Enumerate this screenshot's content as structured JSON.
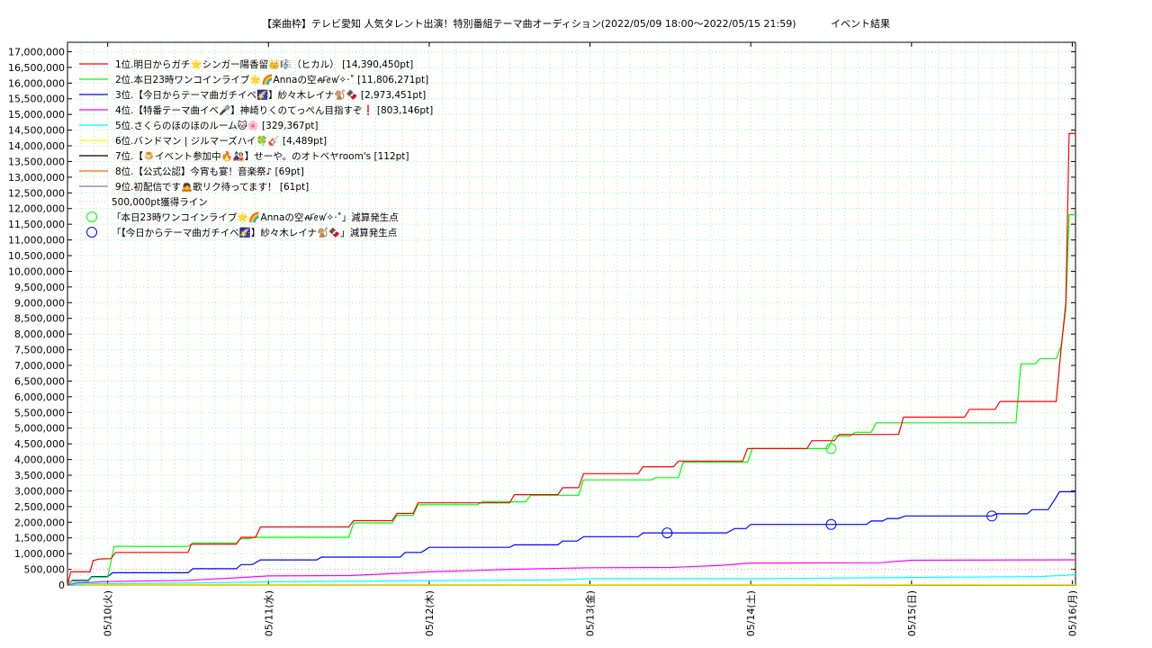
{
  "title": "【楽曲枠】テレビ愛知 人気タレント出演！特別番組テーマ曲オーディション(2022/05/09 18:00〜2022/05/15 21:59)           イベント結果",
  "chart_data": {
    "type": "line",
    "x_tick_labels": [
      "05/10(火)",
      "05/11(水)",
      "05/12(木)",
      "05/13(金)",
      "05/14(土)",
      "05/15(日)",
      "05/16(月)"
    ],
    "x_tick_positions_days": [
      1,
      2,
      3,
      4,
      5,
      6,
      7
    ],
    "xlim_days": [
      0.75,
      7.02
    ],
    "ylim": [
      0,
      17300000
    ],
    "y_ticks": [
      0,
      500000,
      1000000,
      1500000,
      2000000,
      2500000,
      3000000,
      3500000,
      4000000,
      4500000,
      5000000,
      5500000,
      6000000,
      6500000,
      7000000,
      7500000,
      8000000,
      8500000,
      9000000,
      9500000,
      10000000,
      10500000,
      11000000,
      11500000,
      12000000,
      12500000,
      13000000,
      13500000,
      14000000,
      14500000,
      15000000,
      15500000,
      16000000,
      16500000,
      17000000
    ],
    "y_tick_labels": [
      "0",
      "500,000",
      "1,000,000",
      "1,500,000",
      "2,000,000",
      "2,500,000",
      "3,000,000",
      "3,500,000",
      "4,000,000",
      "4,500,000",
      "5,000,000",
      "5,500,000",
      "6,000,000",
      "6,500,000",
      "7,000,000",
      "7,500,000",
      "8,000,000",
      "8,500,000",
      "9,000,000",
      "9,500,000",
      "10,000,000",
      "10,500,000",
      "11,000,000",
      "11,500,000",
      "12,000,000",
      "12,500,000",
      "13,000,000",
      "13,500,000",
      "14,000,000",
      "14,500,000",
      "15,000,000",
      "15,500,000",
      "16,000,000",
      "16,500,000",
      "17,000,000"
    ],
    "grid": true,
    "legend_position": "top-left",
    "series": [
      {
        "name": "1位.明日からガチ🌟シンガー陽香留👑🎼（ヒカル） [14,390,450pt]",
        "color": "#ff0000",
        "points": [
          [
            0.75,
            0
          ],
          [
            0.77,
            420000
          ],
          [
            0.89,
            420000
          ],
          [
            0.91,
            780000
          ],
          [
            0.95,
            830000
          ],
          [
            1.02,
            840000
          ],
          [
            1.05,
            1040000
          ],
          [
            1.5,
            1040000
          ],
          [
            1.52,
            1300000
          ],
          [
            1.8,
            1300000
          ],
          [
            1.83,
            1520000
          ],
          [
            1.92,
            1520000
          ],
          [
            1.95,
            1850000
          ],
          [
            2.5,
            1850000
          ],
          [
            2.53,
            2050000
          ],
          [
            2.77,
            2050000
          ],
          [
            2.8,
            2280000
          ],
          [
            2.9,
            2280000
          ],
          [
            2.93,
            2620000
          ],
          [
            3.5,
            2620000
          ],
          [
            3.53,
            2880000
          ],
          [
            3.8,
            2880000
          ],
          [
            3.83,
            3100000
          ],
          [
            3.93,
            3100000
          ],
          [
            3.96,
            3550000
          ],
          [
            4.3,
            3550000
          ],
          [
            4.33,
            3770000
          ],
          [
            4.52,
            3770000
          ],
          [
            4.55,
            3950000
          ],
          [
            4.95,
            3950000
          ],
          [
            4.98,
            4350000
          ],
          [
            5.35,
            4350000
          ],
          [
            5.38,
            4600000
          ],
          [
            5.52,
            4600000
          ],
          [
            5.55,
            4800000
          ],
          [
            5.92,
            4800000
          ],
          [
            5.95,
            5350000
          ],
          [
            6.33,
            5350000
          ],
          [
            6.36,
            5600000
          ],
          [
            6.52,
            5600000
          ],
          [
            6.55,
            5850000
          ],
          [
            6.9,
            5850000
          ],
          [
            6.93,
            7500000
          ],
          [
            6.96,
            9000000
          ],
          [
            6.98,
            14390450
          ],
          [
            7.02,
            14390450
          ]
        ]
      },
      {
        "name": "2位.本日23時ワンコインライブ🌟🌈Annaの空ꫛꫀꪝ✧‧˚ [11,806,271pt]",
        "color": "#00ff00",
        "points": [
          [
            0.75,
            0
          ],
          [
            0.77,
            120000
          ],
          [
            0.88,
            120000
          ],
          [
            0.9,
            250000
          ],
          [
            1.0,
            250000
          ],
          [
            1.04,
            1230000
          ],
          [
            1.5,
            1230000
          ],
          [
            1.53,
            1340000
          ],
          [
            1.8,
            1340000
          ],
          [
            1.83,
            1480000
          ],
          [
            1.88,
            1480000
          ],
          [
            1.92,
            1520000
          ],
          [
            2.5,
            1520000
          ],
          [
            2.53,
            1980000
          ],
          [
            2.77,
            1980000
          ],
          [
            2.8,
            2220000
          ],
          [
            2.9,
            2220000
          ],
          [
            2.93,
            2560000
          ],
          [
            3.3,
            2560000
          ],
          [
            3.33,
            2650000
          ],
          [
            3.6,
            2650000
          ],
          [
            3.63,
            2860000
          ],
          [
            3.93,
            2860000
          ],
          [
            3.96,
            3350000
          ],
          [
            4.38,
            3350000
          ],
          [
            4.41,
            3420000
          ],
          [
            4.55,
            3420000
          ],
          [
            4.58,
            3920000
          ],
          [
            4.98,
            3920000
          ],
          [
            5.01,
            4350000
          ],
          [
            5.48,
            4350000
          ],
          [
            5.52,
            4750000
          ],
          [
            5.62,
            4750000
          ],
          [
            5.65,
            4870000
          ],
          [
            5.75,
            4870000
          ],
          [
            5.78,
            5170000
          ],
          [
            6.65,
            5170000
          ],
          [
            6.68,
            7050000
          ],
          [
            6.77,
            7050000
          ],
          [
            6.8,
            7220000
          ],
          [
            6.9,
            7220000
          ],
          [
            6.93,
            7600000
          ],
          [
            6.96,
            8800000
          ],
          [
            6.98,
            11806271
          ],
          [
            7.02,
            11806271
          ]
        ]
      },
      {
        "name": "3位.【今日からテーマ曲ガチイベ🌠】紗々木レイナ🐒🍫 [2,973,451pt]",
        "color": "#0000ff",
        "points": [
          [
            0.75,
            0
          ],
          [
            0.78,
            150000
          ],
          [
            0.88,
            150000
          ],
          [
            0.9,
            270000
          ],
          [
            1.0,
            270000
          ],
          [
            1.03,
            390000
          ],
          [
            1.5,
            390000
          ],
          [
            1.53,
            520000
          ],
          [
            1.8,
            520000
          ],
          [
            1.83,
            650000
          ],
          [
            1.9,
            650000
          ],
          [
            1.95,
            800000
          ],
          [
            2.3,
            800000
          ],
          [
            2.33,
            890000
          ],
          [
            2.82,
            890000
          ],
          [
            2.85,
            1040000
          ],
          [
            2.95,
            1040000
          ],
          [
            3.0,
            1200000
          ],
          [
            3.5,
            1200000
          ],
          [
            3.53,
            1280000
          ],
          [
            3.8,
            1280000
          ],
          [
            3.83,
            1400000
          ],
          [
            3.92,
            1400000
          ],
          [
            3.96,
            1540000
          ],
          [
            4.3,
            1540000
          ],
          [
            4.33,
            1660000
          ],
          [
            4.85,
            1660000
          ],
          [
            4.9,
            1800000
          ],
          [
            4.97,
            1800000
          ],
          [
            5.0,
            1930000
          ],
          [
            5.72,
            1930000
          ],
          [
            5.75,
            2040000
          ],
          [
            5.82,
            2040000
          ],
          [
            5.85,
            2120000
          ],
          [
            5.92,
            2120000
          ],
          [
            5.96,
            2200000
          ],
          [
            6.5,
            2200000
          ],
          [
            6.53,
            2270000
          ],
          [
            6.72,
            2270000
          ],
          [
            6.75,
            2400000
          ],
          [
            6.85,
            2400000
          ],
          [
            6.9,
            2800000
          ],
          [
            6.92,
            2973451
          ],
          [
            7.02,
            2973451
          ]
        ]
      },
      {
        "name": "4位.【特番テーマ曲イベ🎤】神崎りくのてっぺん目指すぞ❗ [803,146pt]",
        "color": "#ff00ff",
        "points": [
          [
            0.75,
            0
          ],
          [
            0.8,
            60000
          ],
          [
            1.0,
            110000
          ],
          [
            1.5,
            150000
          ],
          [
            1.8,
            230000
          ],
          [
            2.0,
            290000
          ],
          [
            2.5,
            300000
          ],
          [
            2.8,
            370000
          ],
          [
            3.0,
            420000
          ],
          [
            3.5,
            500000
          ],
          [
            4.0,
            550000
          ],
          [
            4.5,
            560000
          ],
          [
            4.8,
            620000
          ],
          [
            5.0,
            700000
          ],
          [
            5.8,
            710000
          ],
          [
            6.0,
            790000
          ],
          [
            6.8,
            800000
          ],
          [
            7.02,
            803146
          ]
        ]
      },
      {
        "name": "5位.さくらのほのほのルーム🐱🌸 [329,367pt]",
        "color": "#00ffff",
        "points": [
          [
            0.75,
            0
          ],
          [
            0.9,
            40000
          ],
          [
            1.5,
            60000
          ],
          [
            2.0,
            100000
          ],
          [
            3.0,
            140000
          ],
          [
            3.8,
            160000
          ],
          [
            4.0,
            200000
          ],
          [
            5.0,
            200000
          ],
          [
            6.0,
            240000
          ],
          [
            6.8,
            270000
          ],
          [
            7.02,
            329367
          ]
        ]
      },
      {
        "name": "6位.バンドマン | ジルマーズハイ🍀🎸 [4,489pt]",
        "color": "#ffff00",
        "points": [
          [
            0.75,
            0
          ],
          [
            7.02,
            4489
          ]
        ]
      },
      {
        "name": "7位.【🍮イベント参加中🔥🎎】せーや。のオトベヤroom's [112pt]",
        "color": "#000000",
        "points": [
          [
            0.75,
            0
          ],
          [
            7.02,
            112
          ]
        ]
      },
      {
        "name": "8位.【公式公認】今宵も宴！音楽祭♪ [69pt]",
        "color": "#ff6600",
        "points": [
          [
            0.75,
            0
          ],
          [
            7.02,
            69
          ]
        ]
      },
      {
        "name": "9位.初配信です🙇歌リク待ってます！ [61pt]",
        "color": "#808080",
        "points": [
          [
            0.75,
            0
          ],
          [
            7.02,
            61
          ]
        ]
      }
    ],
    "reference_line": {
      "name": "500,000pt獲得ライン",
      "value": 500000,
      "color": "#ff99cc"
    },
    "markers": [
      {
        "name": "「本日23時ワンコインライブ🌟🌈Annaの空ꫛꫀꪝ✧‧˚」減算発生点",
        "color": "#00ff00",
        "points": [
          [
            5.5,
            4350000
          ]
        ]
      },
      {
        "name": "「【今日からテーマ曲ガチイベ🌠】紗々木レイナ🐒🍫」減算発生点",
        "color": "#0000ff",
        "points": [
          [
            4.48,
            1660000
          ],
          [
            5.5,
            1930000
          ],
          [
            6.5,
            2200000
          ]
        ]
      }
    ]
  }
}
